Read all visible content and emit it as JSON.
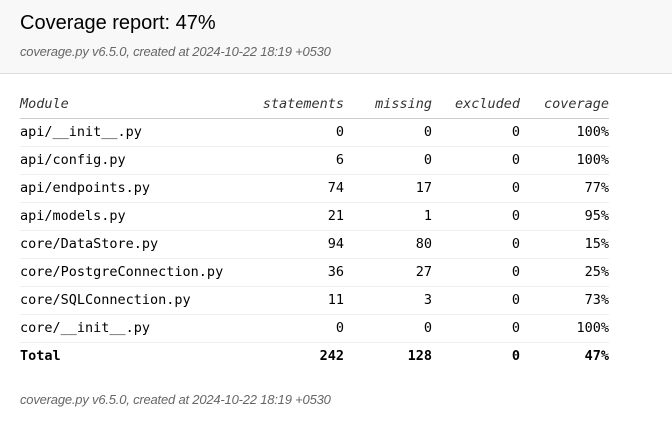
{
  "header": {
    "title": "Coverage report: 47%",
    "created": "coverage.py v6.5.0, created at 2024-10-22 18:19 +0530"
  },
  "table": {
    "columns": [
      "Module",
      "statements",
      "missing",
      "excluded",
      "coverage"
    ],
    "rows": [
      {
        "module": "api/__init__.py",
        "statements": "0",
        "missing": "0",
        "excluded": "0",
        "coverage": "100%"
      },
      {
        "module": "api/config.py",
        "statements": "6",
        "missing": "0",
        "excluded": "0",
        "coverage": "100%"
      },
      {
        "module": "api/endpoints.py",
        "statements": "74",
        "missing": "17",
        "excluded": "0",
        "coverage": "77%"
      },
      {
        "module": "api/models.py",
        "statements": "21",
        "missing": "1",
        "excluded": "0",
        "coverage": "95%"
      },
      {
        "module": "core/DataStore.py",
        "statements": "94",
        "missing": "80",
        "excluded": "0",
        "coverage": "15%"
      },
      {
        "module": "core/PostgreConnection.py",
        "statements": "36",
        "missing": "27",
        "excluded": "0",
        "coverage": "25%"
      },
      {
        "module": "core/SQLConnection.py",
        "statements": "11",
        "missing": "3",
        "excluded": "0",
        "coverage": "73%"
      },
      {
        "module": "core/__init__.py",
        "statements": "0",
        "missing": "0",
        "excluded": "0",
        "coverage": "100%"
      }
    ],
    "total": {
      "module": "Total",
      "statements": "242",
      "missing": "128",
      "excluded": "0",
      "coverage": "47%"
    }
  },
  "footer": {
    "created": "coverage.py v6.5.0, created at 2024-10-22 18:19 +0530"
  }
}
